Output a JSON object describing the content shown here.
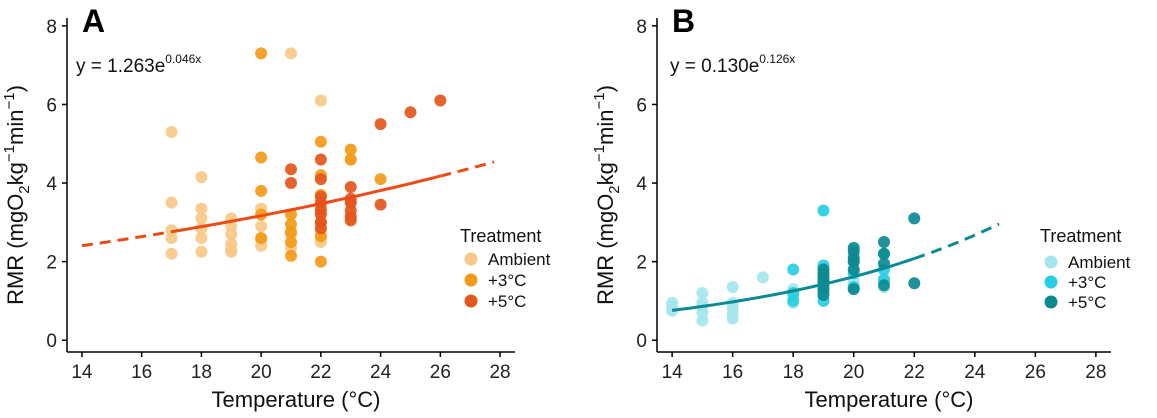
{
  "chart_data": [
    {
      "type": "scatter",
      "panel_label": "A",
      "title": "",
      "xlabel": "Temperature (°C)",
      "ylabel": "RMR (mgO2kg-1min-1)",
      "ylabel_parts": {
        "pre": "RMR  (mgO",
        "sub": "2",
        "mid1": "kg",
        "sup1": "−1",
        "mid2": "min",
        "sup2": "−1",
        "post": ")"
      },
      "xlim": [
        13.5,
        28.5
      ],
      "ylim": [
        -0.3,
        8.2
      ],
      "xticks": [
        14,
        16,
        18,
        20,
        22,
        24,
        26,
        28
      ],
      "yticks": [
        0,
        2,
        4,
        6,
        8
      ],
      "equation": {
        "base": "y = 1.263e",
        "exp": "0.046x"
      },
      "fit": {
        "a": 1.263,
        "b": 0.046,
        "solid_range": [
          17,
          26
        ],
        "dashed_ranges": [
          [
            14,
            17
          ],
          [
            26,
            27.8
          ]
        ],
        "color": "#ee4a16"
      },
      "legend": {
        "title": "Treatment",
        "position": "right"
      },
      "series": [
        {
          "name": "Ambient",
          "color": "#f8c887",
          "x": [
            17,
            17,
            17,
            17,
            17,
            18,
            18,
            18,
            18,
            18,
            18,
            19,
            19,
            19,
            19,
            19,
            19,
            20,
            20,
            20,
            20,
            21,
            21,
            21,
            22,
            22,
            22,
            22,
            22,
            22,
            23,
            23,
            23
          ],
          "y": [
            5.3,
            3.5,
            2.8,
            2.6,
            2.2,
            4.15,
            3.35,
            3.1,
            2.85,
            2.6,
            2.25,
            3.1,
            2.9,
            2.7,
            2.45,
            2.3,
            2.25,
            3.35,
            2.9,
            2.55,
            2.4,
            7.3,
            2.7,
            2.35,
            6.1,
            3.3,
            3.0,
            2.8,
            2.6,
            2.5,
            4.6,
            3.5,
            3.1
          ]
        },
        {
          "name": "+3°C",
          "color": "#f39a17",
          "x": [
            20,
            20,
            20,
            20,
            20,
            21,
            21,
            21,
            21,
            21,
            22,
            22,
            22,
            22,
            22,
            22,
            22,
            23,
            23,
            24
          ],
          "y": [
            7.3,
            4.65,
            3.8,
            3.2,
            2.6,
            3.2,
            2.95,
            2.75,
            2.5,
            2.15,
            5.05,
            4.2,
            3.7,
            3.4,
            3.0,
            2.65,
            2.0,
            4.85,
            4.6,
            4.1
          ]
        },
        {
          "name": "+5°C",
          "color": "#e4561b",
          "x": [
            21,
            21,
            22,
            22,
            22,
            22,
            22,
            22,
            22,
            22,
            23,
            23,
            23,
            23,
            23,
            23,
            24,
            24,
            25,
            26
          ],
          "y": [
            4.35,
            4.0,
            4.6,
            4.1,
            3.65,
            3.5,
            3.3,
            3.2,
            3.0,
            2.85,
            3.9,
            3.6,
            3.5,
            3.3,
            3.15,
            3.05,
            5.5,
            3.45,
            5.8,
            6.1
          ]
        }
      ]
    },
    {
      "type": "scatter",
      "panel_label": "B",
      "title": "",
      "xlabel": "Temperature (°C)",
      "ylabel": "RMR (mgO2kg-1min-1)",
      "ylabel_parts": {
        "pre": "RMR  (mgO",
        "sub": "2",
        "mid1": "kg",
        "sup1": "−1",
        "mid2": "min",
        "sup2": "−1",
        "post": ")"
      },
      "xlim": [
        13.5,
        28.5
      ],
      "ylim": [
        -0.3,
        8.2
      ],
      "xticks": [
        14,
        16,
        18,
        20,
        22,
        24,
        26,
        28
      ],
      "yticks": [
        0,
        2,
        4,
        6,
        8
      ],
      "equation": {
        "base": "y = 0.130e",
        "exp": "0.126x"
      },
      "fit": {
        "a": 0.13,
        "b": 0.126,
        "solid_range": [
          14,
          22
        ],
        "dashed_ranges": [
          [
            22,
            24.8
          ]
        ],
        "color": "#0b8a96"
      },
      "legend": {
        "title": "Treatment",
        "position": "right"
      },
      "series": [
        {
          "name": "Ambient",
          "color": "#a5e6ee",
          "x": [
            14,
            14,
            14,
            15,
            15,
            15,
            15,
            15,
            16,
            16,
            16,
            16,
            16,
            17,
            18,
            18,
            18,
            19,
            19,
            20,
            20,
            21,
            21
          ],
          "y": [
            0.95,
            0.85,
            0.75,
            1.2,
            0.95,
            0.85,
            0.7,
            0.5,
            1.35,
            0.95,
            0.8,
            0.65,
            0.55,
            1.6,
            1.3,
            1.1,
            0.95,
            1.6,
            1.2,
            1.5,
            1.35,
            1.5,
            1.35
          ]
        },
        {
          "name": "+3°C",
          "color": "#27cde3",
          "x": [
            18,
            18,
            18,
            19,
            19,
            19,
            19,
            19,
            20,
            20,
            20,
            21,
            21,
            21
          ],
          "y": [
            1.8,
            1.2,
            1.0,
            3.3,
            1.9,
            1.5,
            1.25,
            1.0,
            2.0,
            1.7,
            1.35,
            2.2,
            1.8,
            1.55
          ]
        },
        {
          "name": "+5°C",
          "color": "#0c8a92",
          "x": [
            19,
            19,
            19,
            19,
            19,
            19,
            19,
            20,
            20,
            20,
            20,
            20,
            20,
            21,
            21,
            21,
            21,
            22,
            22
          ],
          "y": [
            1.8,
            1.7,
            1.6,
            1.5,
            1.4,
            1.3,
            1.15,
            2.35,
            2.25,
            2.1,
            2.0,
            1.8,
            1.3,
            2.5,
            2.2,
            1.95,
            1.4,
            3.1,
            1.45
          ]
        }
      ]
    }
  ]
}
